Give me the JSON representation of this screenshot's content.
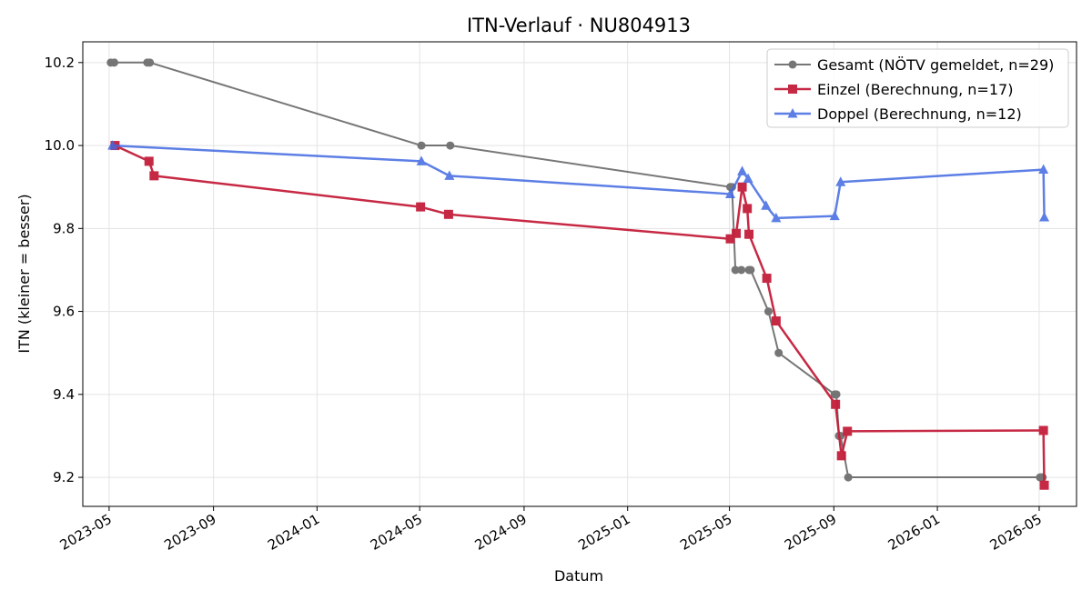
{
  "chart_data": {
    "type": "line",
    "title": "ITN-Verlauf · NU804913",
    "xlabel": "Datum",
    "ylabel": "ITN  (kleiner = besser)",
    "x_axis_type": "date",
    "xlim": [
      "2023-03-31",
      "2026-06-14"
    ],
    "ylim": [
      9.13,
      10.25
    ],
    "x_ticks": [
      "2023-05-01",
      "2023-09-01",
      "2024-01-01",
      "2024-05-01",
      "2024-09-01",
      "2025-01-01",
      "2025-05-01",
      "2025-09-01",
      "2026-01-01",
      "2026-05-01"
    ],
    "x_tick_labels": [
      "2023-05",
      "2023-09",
      "2024-01",
      "2024-05",
      "2024-09",
      "2025-01",
      "2025-05",
      "2025-09",
      "2026-01",
      "2026-05"
    ],
    "y_ticks": [
      9.2,
      9.4,
      9.6,
      9.8,
      10.0,
      10.2
    ],
    "y_tick_labels": [
      "9.2",
      "9.4",
      "9.6",
      "9.8",
      "10.0",
      "10.2"
    ],
    "grid": true,
    "legend_position": "top-right",
    "series": [
      {
        "name": "Gesamt (NÖTV gemeldet, n=29)",
        "color": "#555555",
        "marker": "circle",
        "points": [
          {
            "x": "2023-05-03",
            "y": 10.2
          },
          {
            "x": "2023-05-07",
            "y": 10.2
          },
          {
            "x": "2023-06-15",
            "y": 10.2
          },
          {
            "x": "2023-06-18",
            "y": 10.2
          },
          {
            "x": "2024-05-03",
            "y": 10.0
          },
          {
            "x": "2024-06-06",
            "y": 10.0
          },
          {
            "x": "2025-05-02",
            "y": 9.9
          },
          {
            "x": "2025-05-04",
            "y": 9.9
          },
          {
            "x": "2025-05-08",
            "y": 9.7
          },
          {
            "x": "2025-05-15",
            "y": 9.7
          },
          {
            "x": "2025-05-24",
            "y": 9.7
          },
          {
            "x": "2025-05-26",
            "y": 9.7
          },
          {
            "x": "2025-06-16",
            "y": 9.6
          },
          {
            "x": "2025-06-28",
            "y": 9.5
          },
          {
            "x": "2025-09-02",
            "y": 9.4
          },
          {
            "x": "2025-09-04",
            "y": 9.4
          },
          {
            "x": "2025-09-07",
            "y": 9.3
          },
          {
            "x": "2025-09-09",
            "y": 9.3
          },
          {
            "x": "2025-09-18",
            "y": 9.2
          },
          {
            "x": "2026-05-02",
            "y": 9.2
          },
          {
            "x": "2026-05-04",
            "y": 9.2
          },
          {
            "x": "2026-05-05",
            "y": 9.2
          }
        ]
      },
      {
        "name": "Einzel (Berechnung, n=17)",
        "color": "#c41e3a",
        "marker": "square",
        "points": [
          {
            "x": "2023-05-08",
            "y": 10.0
          },
          {
            "x": "2023-06-17",
            "y": 9.962
          },
          {
            "x": "2023-06-23",
            "y": 9.927
          },
          {
            "x": "2024-05-02",
            "y": 9.852
          },
          {
            "x": "2024-06-04",
            "y": 9.834
          },
          {
            "x": "2025-05-02",
            "y": 9.775
          },
          {
            "x": "2025-05-09",
            "y": 9.788
          },
          {
            "x": "2025-05-16",
            "y": 9.9
          },
          {
            "x": "2025-05-22",
            "y": 9.848
          },
          {
            "x": "2025-05-24",
            "y": 9.786
          },
          {
            "x": "2025-06-14",
            "y": 9.68
          },
          {
            "x": "2025-06-25",
            "y": 9.577
          },
          {
            "x": "2025-09-03",
            "y": 9.376
          },
          {
            "x": "2025-09-10",
            "y": 9.252
          },
          {
            "x": "2025-09-17",
            "y": 9.311
          },
          {
            "x": "2026-05-06",
            "y": 9.313
          },
          {
            "x": "2026-05-07",
            "y": 9.181
          }
        ]
      },
      {
        "name": "Doppel (Berechnung, n=12)",
        "color": "#4169e1",
        "marker": "triangle",
        "points": [
          {
            "x": "2023-05-05",
            "y": 10.0
          },
          {
            "x": "2024-05-03",
            "y": 9.962
          },
          {
            "x": "2024-06-05",
            "y": 9.927
          },
          {
            "x": "2025-05-02",
            "y": 9.883
          },
          {
            "x": "2025-05-16",
            "y": 9.938
          },
          {
            "x": "2025-05-23",
            "y": 9.92
          },
          {
            "x": "2025-06-13",
            "y": 9.855
          },
          {
            "x": "2025-06-25",
            "y": 9.825
          },
          {
            "x": "2025-09-02",
            "y": 9.83
          },
          {
            "x": "2025-09-09",
            "y": 9.912
          },
          {
            "x": "2026-05-06",
            "y": 9.942
          },
          {
            "x": "2026-05-07",
            "y": 9.827
          }
        ]
      }
    ]
  }
}
